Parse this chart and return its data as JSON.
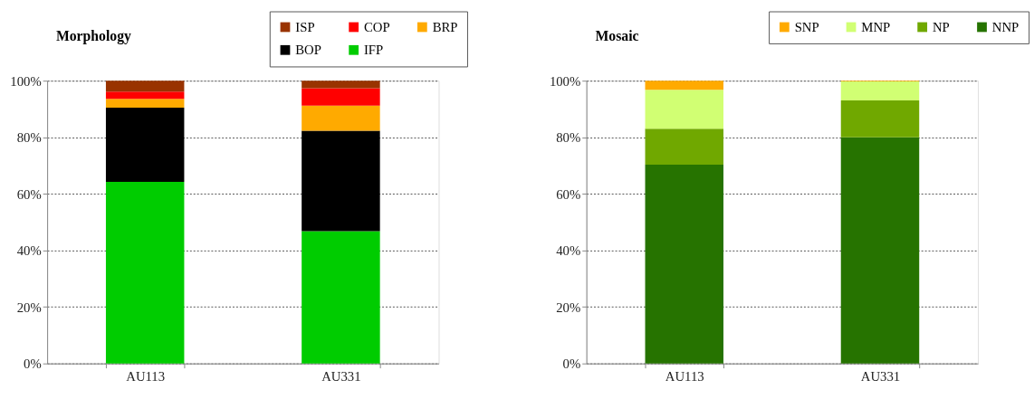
{
  "chart_data": [
    {
      "type": "bar",
      "title": "Morphology",
      "stacked": true,
      "categories": [
        "AU113",
        "AU331"
      ],
      "ylim": [
        0,
        100
      ],
      "yticks": [
        {
          "value": 0,
          "label": "0%"
        },
        {
          "value": 20,
          "label": "20%"
        },
        {
          "value": 40,
          "label": "40%"
        },
        {
          "value": 60,
          "label": "60%"
        },
        {
          "value": 80,
          "label": "80%"
        },
        {
          "value": 100,
          "label": "100%"
        }
      ],
      "grid": "y",
      "legend": "top right",
      "series": [
        {
          "name": "IFP",
          "color": "#00cc00",
          "values": [
            64.2,
            46.8
          ]
        },
        {
          "name": "BOP",
          "color": "#000000",
          "values": [
            26.3,
            35.5
          ]
        },
        {
          "name": "BRP",
          "color": "#ffaa00",
          "values": [
            3.1,
            8.9
          ]
        },
        {
          "name": "COP",
          "color": "#ff0000",
          "values": [
            2.5,
            6.1
          ]
        },
        {
          "name": "ISP",
          "color": "#993300",
          "values": [
            3.9,
            2.7
          ]
        }
      ]
    },
    {
      "type": "bar",
      "title": "Mosaic",
      "stacked": true,
      "categories": [
        "AU113",
        "AU331"
      ],
      "ylim": [
        0,
        100
      ],
      "yticks": [
        {
          "value": 0,
          "label": "0%"
        },
        {
          "value": 20,
          "label": "20%"
        },
        {
          "value": 40,
          "label": "40%"
        },
        {
          "value": 60,
          "label": "60%"
        },
        {
          "value": 80,
          "label": "80%"
        },
        {
          "value": 100,
          "label": "100%"
        }
      ],
      "grid": "y",
      "legend": "top right",
      "series": [
        {
          "name": "NNP",
          "color": "#267300",
          "values": [
            70.3,
            80.0
          ]
        },
        {
          "name": "NP",
          "color": "#70a800",
          "values": [
            12.7,
            13.0
          ]
        },
        {
          "name": "MNP",
          "color": "#d1ff73",
          "values": [
            13.8,
            6.7
          ]
        },
        {
          "name": "SNP",
          "color": "#ffaa00",
          "values": [
            3.2,
            0.3
          ]
        }
      ]
    }
  ]
}
